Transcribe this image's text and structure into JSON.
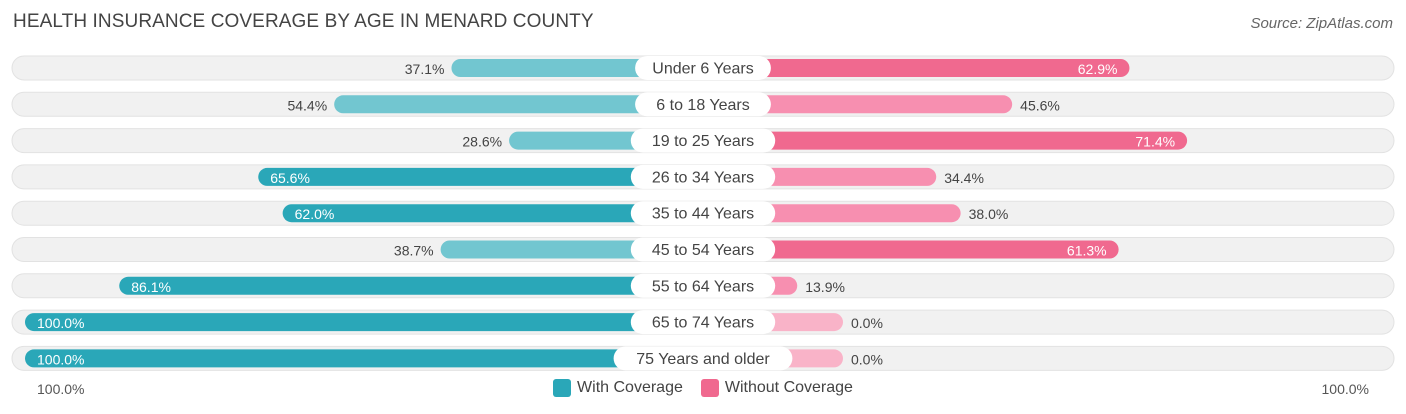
{
  "title": "HEALTH INSURANCE COVERAGE BY AGE IN MENARD COUNTY",
  "source": "Source: ZipAtlas.com",
  "axis": {
    "left_label": "100.0%",
    "right_label": "100.0%"
  },
  "legend": {
    "with_label": "With Coverage",
    "without_label": "Without Coverage"
  },
  "colors": {
    "with_dark": "#2aa7b8",
    "with_light": "#72c6d0",
    "without_dark": "#f0698f",
    "without_light": "#f78fb0",
    "without_faint": "#f9b3c8",
    "track": "#f1f1f1"
  },
  "chart_data": {
    "type": "bar",
    "orientation": "horizontal-diverging",
    "title": "HEALTH INSURANCE COVERAGE BY AGE IN MENARD COUNTY",
    "categories": [
      "Under 6 Years",
      "6 to 18 Years",
      "19 to 25 Years",
      "26 to 34 Years",
      "35 to 44 Years",
      "45 to 54 Years",
      "55 to 64 Years",
      "65 to 74 Years",
      "75 Years and older"
    ],
    "series": [
      {
        "name": "With Coverage",
        "values": [
          37.1,
          54.4,
          28.6,
          65.6,
          62.0,
          38.7,
          86.1,
          100.0,
          100.0
        ],
        "labels": [
          "37.1%",
          "54.4%",
          "28.6%",
          "65.6%",
          "62.0%",
          "38.7%",
          "86.1%",
          "100.0%",
          "100.0%"
        ]
      },
      {
        "name": "Without Coverage",
        "values": [
          62.9,
          45.6,
          71.4,
          34.4,
          38.0,
          61.3,
          13.9,
          0.0,
          0.0
        ],
        "labels": [
          "62.9%",
          "45.6%",
          "71.4%",
          "34.4%",
          "38.0%",
          "61.3%",
          "13.9%",
          "0.0%",
          "0.0%"
        ]
      }
    ],
    "xlim": [
      0,
      100
    ],
    "legend_position": "bottom-center"
  }
}
